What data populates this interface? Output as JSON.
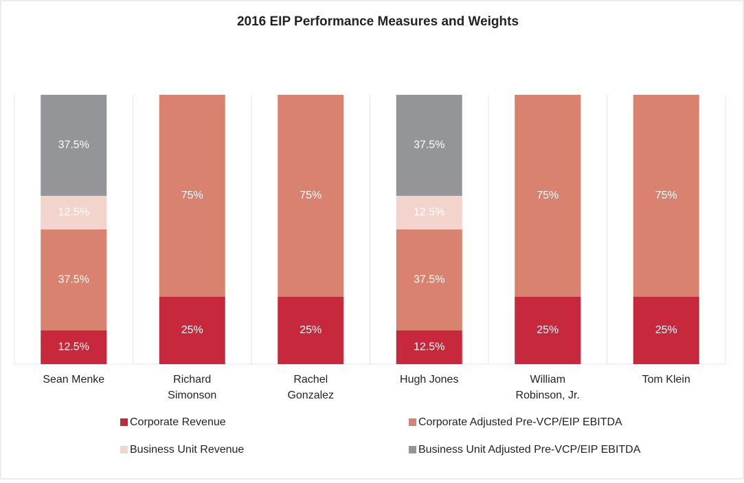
{
  "chart_data": {
    "type": "stacked_bar",
    "title": "2016 EIP Performance Measures and Weights",
    "categories": [
      "Sean Menke",
      "Richard\nSimonson",
      "Rachel\nGonzalez",
      "Hugh Jones",
      "William\nRobinson, Jr.",
      "Tom Klein"
    ],
    "ylim": [
      0,
      100
    ],
    "series": [
      {
        "name": "Corporate Revenue",
        "color": "#c8283c",
        "values": [
          12.5,
          25,
          25,
          12.5,
          25,
          25
        ],
        "value_labels": [
          "12.5%",
          "25%",
          "25%",
          "12.5%",
          "25%",
          "25%"
        ]
      },
      {
        "name": "Corporate Adjusted Pre-VCP/EIP EBITDA",
        "color": "#d9826f",
        "values": [
          37.5,
          75,
          75,
          37.5,
          75,
          75
        ],
        "value_labels": [
          "37.5%",
          "75%",
          "75%",
          "37.5%",
          "75%",
          "75%"
        ]
      },
      {
        "name": "Business Unit Revenue",
        "color": "#f3d4cc",
        "values": [
          12.5,
          0,
          0,
          12.5,
          0,
          0
        ],
        "value_labels": [
          "12.5%",
          null,
          null,
          "12.5%",
          null,
          null
        ]
      },
      {
        "name": "Business Unit Adjusted Pre-VCP/EIP EBITDA",
        "color": "#939598",
        "values": [
          37.5,
          0,
          0,
          37.5,
          0,
          0
        ],
        "value_labels": [
          "37.5%",
          null,
          null,
          "37.5%",
          null,
          null
        ]
      }
    ],
    "legend": "bottom"
  }
}
